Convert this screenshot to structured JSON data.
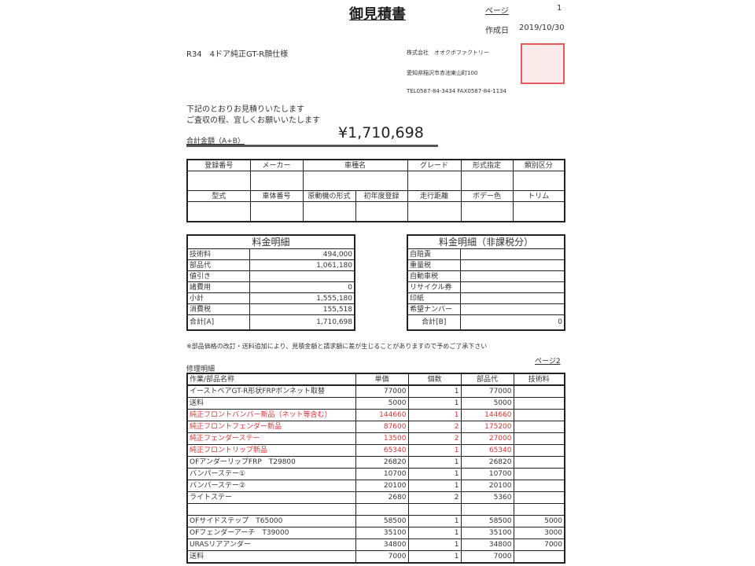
{
  "header": {
    "title": "御見積書",
    "page_label": "ページ",
    "page_no": "1",
    "date_label": "作成日",
    "date": "2019/10/30"
  },
  "subject": "R34　4ドア純正GT-R顔仕様",
  "company": {
    "name": "株式会社　オオクボファクトリー",
    "address": "愛知県稲沢市赤池東山町100",
    "tel": "TEL0587-84-3434 FAX0587-84-1134",
    "stamp_color": "#d33"
  },
  "greeting": [
    "下記のとおりお見積りいたします",
    "ご査収の程、宜しくお願いいたします"
  ],
  "total": {
    "label": "合計金額（A+B）",
    "value": "¥1,710,698"
  },
  "vehicle": {
    "row1": [
      "登録番号",
      "メーカー",
      "車種名",
      "グレード",
      "形式指定",
      "類別区分"
    ],
    "row2": [
      "型式",
      "車体番号",
      "原動機の形式",
      "初年度登録",
      "走行距離",
      "ボデー色",
      "トリム"
    ]
  },
  "fees": {
    "title": "料金明細",
    "rows": [
      [
        "技術料",
        "494,000"
      ],
      [
        "部品代",
        "1,061,180"
      ],
      [
        "値引き",
        ""
      ],
      [
        "諸費用",
        "0"
      ],
      [
        "小計",
        "1,555,180"
      ],
      [
        "消費税",
        "155,518"
      ]
    ],
    "total": [
      "合計[A]",
      "1,710,698"
    ]
  },
  "nontax": {
    "title": "料金明細（非課税分）",
    "rows": [
      "自賠責",
      "重量税",
      "自動車税",
      "リサイクル券",
      "印紙",
      "希望ナンバー"
    ],
    "total": [
      "合計[B]",
      "0"
    ]
  },
  "note": "※部品価格の改訂・送料追加により、見積金額と請求額に差が生じることがありますので予めご了承下さい",
  "page2": "ページ2",
  "repair": {
    "title": "修理明細",
    "headers": [
      "作業/部品名称",
      "単価",
      "個数",
      "部品代",
      "技術料"
    ],
    "rows": [
      {
        "name": "イーストベアGT-R形状FRPボンネット取替",
        "price": "77000",
        "qty": "1",
        "parts": "77000",
        "tech": "",
        "red": false
      },
      {
        "name": "送料",
        "price": "5000",
        "qty": "1",
        "parts": "5000",
        "tech": "",
        "red": false
      },
      {
        "name": "純正フロントバンパー新品（ネット等含む）",
        "price": "144660",
        "qty": "1",
        "parts": "144660",
        "tech": "",
        "red": true
      },
      {
        "name": "純正フロントフェンダー新品",
        "price": "87600",
        "qty": "2",
        "parts": "175200",
        "tech": "",
        "red": true
      },
      {
        "name": "純正フェンダーステー",
        "price": "13500",
        "qty": "2",
        "parts": "27000",
        "tech": "",
        "red": true
      },
      {
        "name": "純正フロントリップ新品",
        "price": "65340",
        "qty": "1",
        "parts": "65340",
        "tech": "",
        "red": true
      },
      {
        "name": "OFアンダーリップFRP　T29800",
        "price": "26820",
        "qty": "1",
        "parts": "26820",
        "tech": "",
        "red": false
      },
      {
        "name": "バンパーステー①",
        "price": "10700",
        "qty": "1",
        "parts": "10700",
        "tech": "",
        "red": false
      },
      {
        "name": "バンパーステー②",
        "price": "20100",
        "qty": "1",
        "parts": "20100",
        "tech": "",
        "red": false
      },
      {
        "name": "ライトステー",
        "price": "2680",
        "qty": "2",
        "parts": "5360",
        "tech": "",
        "red": false
      },
      {
        "name": "",
        "price": "",
        "qty": "",
        "parts": "",
        "tech": "",
        "red": false
      },
      {
        "name": "OFサイドステップ　T65000",
        "price": "58500",
        "qty": "1",
        "parts": "58500",
        "tech": "5000",
        "red": false
      },
      {
        "name": "OFフェンダーアーチ　T39000",
        "price": "35100",
        "qty": "1",
        "parts": "35100",
        "tech": "3000",
        "red": false
      },
      {
        "name": "URASリアアンダー",
        "price": "34800",
        "qty": "1",
        "parts": "34800",
        "tech": "7000",
        "red": false
      },
      {
        "name": "送料",
        "price": "7000",
        "qty": "1",
        "parts": "7000",
        "tech": "",
        "red": false
      }
    ]
  }
}
